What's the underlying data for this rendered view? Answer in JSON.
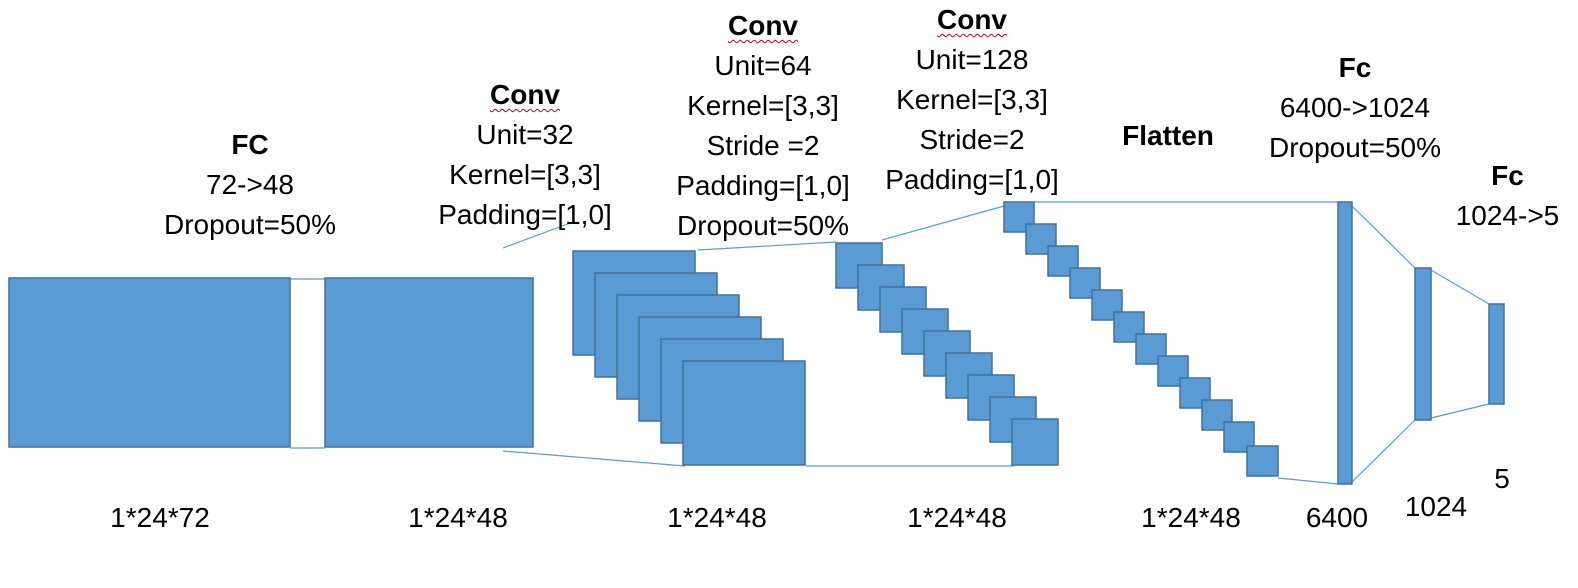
{
  "colors": {
    "block_fill": "#5b9bd5",
    "block_stroke": "#41719c",
    "connector": "#5b9bd5",
    "spell_mark": "#d0021b"
  },
  "layers": [
    {
      "title": "FC",
      "lines": [
        "72->48",
        "Dropout=50%"
      ]
    },
    {
      "title": "Conv",
      "lines": [
        "Unit=32",
        "Kernel=[3,3]",
        "Padding=[1,0]"
      ]
    },
    {
      "title": "Conv",
      "lines": [
        "Unit=64",
        "Kernel=[3,3]",
        "Stride =2",
        "Padding=[1,0]",
        "Dropout=50%"
      ]
    },
    {
      "title": "Conv",
      "lines": [
        "Unit=128",
        "Kernel=[3,3]",
        "Stride=2",
        "Padding=[1,0]"
      ]
    },
    {
      "title": "Flatten",
      "lines": []
    },
    {
      "title": "Fc",
      "lines": [
        "6400->1024",
        "Dropout=50%"
      ]
    },
    {
      "title": "Fc",
      "lines": [
        "1024->5"
      ]
    }
  ],
  "dims": [
    "1*24*72",
    "1*24*48",
    "1*24*48",
    "1*24*48",
    "1*24*48",
    "6400",
    "1024",
    "5"
  ]
}
